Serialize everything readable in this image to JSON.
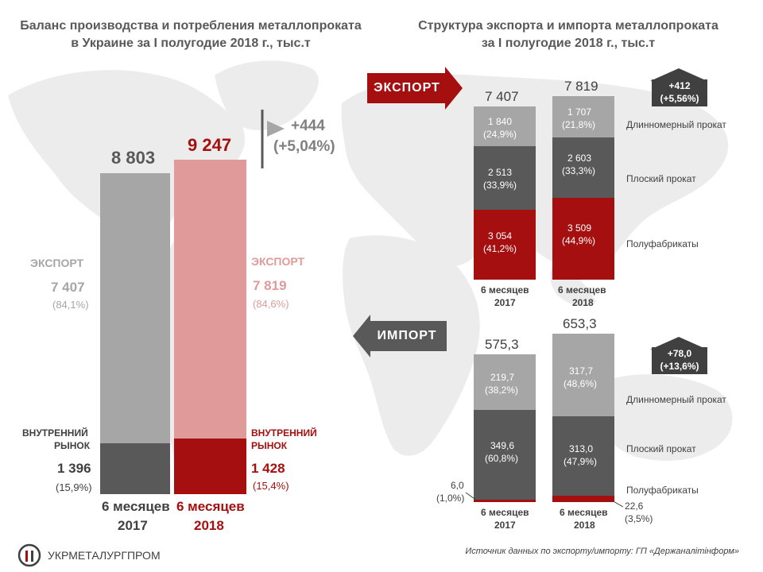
{
  "left": {
    "title_line1": "Баланс производства и потребления металлопроката",
    "title_line2": "в Украине за I полугодие 2018 г., тыс.т",
    "total_2017": "8 803",
    "total_2018": "9 247",
    "delta_abs": "+444",
    "delta_pct": "(+5,04%)",
    "export_label": "ЭКСПОРТ",
    "export_2017": "7 407",
    "export_2017_pct": "(84,1%)",
    "export_2018": "7 819",
    "export_2018_pct": "(84,6%)",
    "domestic_label_1": "ВНУТРЕННИЙ",
    "domestic_label_2": "РЫНОК",
    "domestic_2017": "1 396",
    "domestic_2017_pct": "(15,9%)",
    "domestic_2018": "1 428",
    "domestic_2018_pct": "(15,4%)",
    "period_label": "6 месяцев",
    "year_2017": "2017",
    "year_2018": "2018"
  },
  "right": {
    "title_line1": "Структура экспорта и импорта металлопроката",
    "title_line2": "за I полугодие 2018 г., тыс.т",
    "export_banner": "ЭКСПОРТ",
    "import_banner": "ИМПОРТ",
    "export_total_2017": "7 407",
    "export_total_2018": "7 819",
    "export_delta_abs": "+412",
    "export_delta_pct": "(+5,56%)",
    "import_total_2017": "575,3",
    "import_total_2018": "653,3",
    "import_delta_abs": "+78,0",
    "import_delta_pct": "(+13,6%)",
    "cat_long": "Длинномерный прокат",
    "cat_flat": "Плоский прокат",
    "cat_semi": "Полуфабрикаты",
    "exp17_long": "1 840",
    "exp17_long_pct": "(24,9%)",
    "exp17_flat": "2 513",
    "exp17_flat_pct": "(33,9%)",
    "exp17_semi": "3 054",
    "exp17_semi_pct": "(41,2%)",
    "exp18_long": "1 707",
    "exp18_long_pct": "(21,8%)",
    "exp18_flat": "2 603",
    "exp18_flat_pct": "(33,3%)",
    "exp18_semi": "3 509",
    "exp18_semi_pct": "(44,9%)",
    "imp17_long": "219,7",
    "imp17_long_pct": "(38,2%)",
    "imp17_flat": "349,6",
    "imp17_flat_pct": "(60,8%)",
    "imp17_semi": "6,0",
    "imp17_semi_pct": "(1,0%)",
    "imp18_long": "317,7",
    "imp18_long_pct": "(48,6%)",
    "imp18_flat": "313,0",
    "imp18_flat_pct": "(47,9%)",
    "imp18_semi": "22,6",
    "imp18_semi_pct": "(3,5%)",
    "period_label": "6 месяцев",
    "year_2017": "2017",
    "year_2018": "2018"
  },
  "footer": {
    "logo_text": "УКРМЕТАЛУРГПРОМ",
    "source": "Источник данных по экспорту/импорту:  ГП «Держаналітінформ»"
  },
  "colors": {
    "gray_light": "#a6a6a6",
    "gray_dark": "#595959",
    "red_dark": "#a50f0f",
    "red_light": "#e09a9a",
    "map": "#ececec"
  },
  "chart_data": [
    {
      "type": "bar",
      "stacked": true,
      "categories": [
        "2017",
        "2018"
      ],
      "series": [
        {
          "name": "ВНУТРЕННИЙ РЫНОК",
          "values": [
            1396,
            1428
          ]
        },
        {
          "name": "ЭКСПОРТ",
          "values": [
            7407,
            7819
          ]
        }
      ],
      "totals": [
        8803,
        9247
      ]
    },
    {
      "type": "bar",
      "stacked": true,
      "title": "ЭКСПОРТ",
      "categories": [
        "2017",
        "2018"
      ],
      "series": [
        {
          "name": "Полуфабрикаты",
          "values": [
            3054,
            3509
          ]
        },
        {
          "name": "Плоский прокат",
          "values": [
            2513,
            2603
          ]
        },
        {
          "name": "Длинномерный прокат",
          "values": [
            1840,
            1707
          ]
        }
      ],
      "totals": [
        7407,
        7819
      ]
    },
    {
      "type": "bar",
      "stacked": true,
      "title": "ИМПОРТ",
      "categories": [
        "2017",
        "2018"
      ],
      "series": [
        {
          "name": "Полуфабрикаты",
          "values": [
            6.0,
            22.6
          ]
        },
        {
          "name": "Плоский прокат",
          "values": [
            349.6,
            313.0
          ]
        },
        {
          "name": "Длинномерный прокат",
          "values": [
            219.7,
            317.7
          ]
        }
      ],
      "totals": [
        575.3,
        653.3
      ]
    }
  ]
}
